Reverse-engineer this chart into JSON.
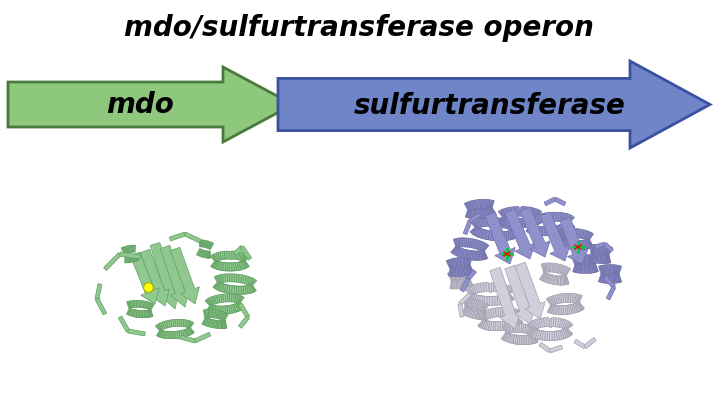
{
  "title_italic": "mdo/sulfurtransferase",
  "title_normal": " operon",
  "arrow1_label": "mdo",
  "arrow2_label": "sulfurtransferase",
  "arrow1_face": "#8dc87c",
  "arrow1_edge": "#4a7a3a",
  "arrow2_face": "#7085c8",
  "arrow2_edge": "#3a50a0",
  "protein1_color": "#90c890",
  "protein1_dark": "#60a060",
  "protein1_light": "#c8e8c8",
  "protein2_blue": "#9090cc",
  "protein2_grey": "#d0d0dc",
  "protein2_dark": "#7070aa",
  "background": "#ffffff",
  "title_fontsize": 20,
  "label_fontsize": 20,
  "fig_width": 7.18,
  "fig_height": 4.06,
  "dpi": 100
}
